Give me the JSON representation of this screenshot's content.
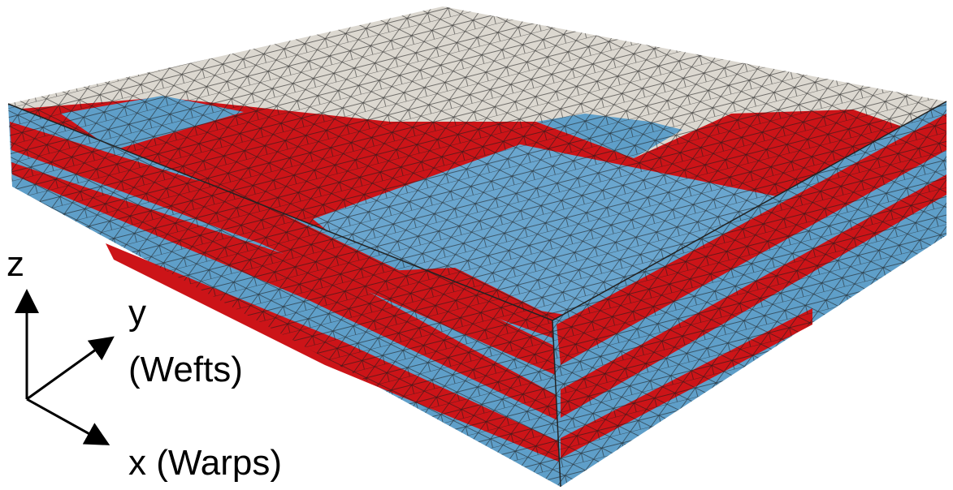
{
  "axes": {
    "z": "z",
    "y": "y",
    "y_note": "(Wefts)",
    "x": "x (Warps)"
  }
}
